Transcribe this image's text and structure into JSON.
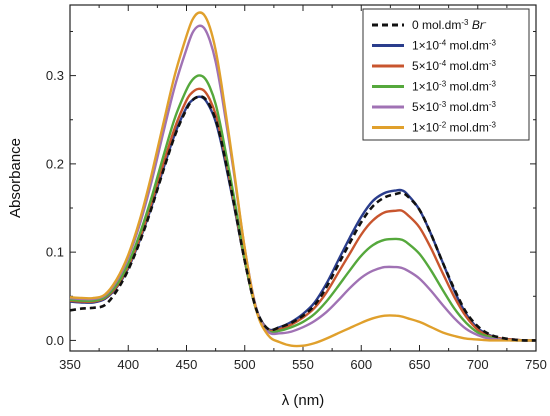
{
  "chart_data": {
    "type": "line",
    "xlabel": "λ (nm)",
    "ylabel": "Absorbance",
    "xlim": [
      350,
      750
    ],
    "ylim": [
      -0.012,
      0.38
    ],
    "xticks": [
      350,
      400,
      450,
      500,
      550,
      600,
      650,
      700,
      750
    ],
    "xtick_labels": [
      "350",
      "400",
      "450",
      "500",
      "550",
      "600",
      "650",
      "700",
      "750"
    ],
    "yticks": [
      0.0,
      0.1,
      0.2,
      0.3
    ],
    "ytick_labels": [
      "0.0",
      "0.1",
      "0.2",
      "0.3"
    ],
    "grid": false,
    "legend_position": "top-right",
    "x": [
      350,
      360,
      370,
      380,
      390,
      400,
      410,
      420,
      430,
      440,
      450,
      455,
      460,
      465,
      470,
      475,
      480,
      490,
      500,
      510,
      520,
      530,
      540,
      550,
      560,
      570,
      580,
      590,
      600,
      610,
      620,
      630,
      635,
      640,
      650,
      660,
      670,
      680,
      690,
      700,
      710,
      720,
      730,
      740,
      750
    ],
    "series": [
      {
        "name": "0 mol.dm-3 Br-",
        "legend_parts": [
          {
            "t": "0 mol.dm"
          },
          {
            "t": "-3",
            "sup": true
          },
          {
            "t": " "
          },
          {
            "t": "Br",
            "italic": true
          },
          {
            "t": "-",
            "sup": true
          }
        ],
        "color": "#111111",
        "dashed": true,
        "values": [
          0.034,
          0.036,
          0.037,
          0.04,
          0.056,
          0.08,
          0.112,
          0.15,
          0.192,
          0.232,
          0.262,
          0.272,
          0.276,
          0.275,
          0.266,
          0.25,
          0.225,
          0.16,
          0.09,
          0.035,
          0.013,
          0.015,
          0.02,
          0.028,
          0.04,
          0.06,
          0.085,
          0.11,
          0.134,
          0.152,
          0.162,
          0.166,
          0.167,
          0.163,
          0.148,
          0.12,
          0.088,
          0.058,
          0.032,
          0.016,
          0.007,
          0.003,
          0.001,
          0.0,
          0.0
        ]
      },
      {
        "name": "1×10-4 mol.dm-3",
        "legend_parts": [
          {
            "t": "1×10"
          },
          {
            "t": "-4",
            "sup": true
          },
          {
            "t": " mol.dm"
          },
          {
            "t": "-3",
            "sup": true
          }
        ],
        "color": "#2a3d8c",
        "dashed": false,
        "values": [
          0.044,
          0.043,
          0.043,
          0.047,
          0.06,
          0.082,
          0.114,
          0.152,
          0.194,
          0.234,
          0.264,
          0.272,
          0.276,
          0.274,
          0.264,
          0.248,
          0.222,
          0.158,
          0.09,
          0.035,
          0.013,
          0.015,
          0.021,
          0.03,
          0.043,
          0.064,
          0.09,
          0.116,
          0.14,
          0.158,
          0.167,
          0.17,
          0.17,
          0.165,
          0.148,
          0.12,
          0.088,
          0.056,
          0.03,
          0.014,
          0.006,
          0.002,
          0.001,
          0.0,
          0.0
        ]
      },
      {
        "name": "5×10-4 mol.dm-3",
        "legend_parts": [
          {
            "t": "5×10"
          },
          {
            "t": "-4",
            "sup": true
          },
          {
            "t": " mol.dm"
          },
          {
            "t": "-3",
            "sup": true
          }
        ],
        "color": "#c8552e",
        "dashed": false,
        "values": [
          0.045,
          0.044,
          0.044,
          0.048,
          0.061,
          0.084,
          0.116,
          0.156,
          0.199,
          0.241,
          0.272,
          0.281,
          0.285,
          0.283,
          0.273,
          0.256,
          0.229,
          0.162,
          0.09,
          0.034,
          0.012,
          0.013,
          0.018,
          0.026,
          0.037,
          0.054,
          0.076,
          0.098,
          0.12,
          0.136,
          0.145,
          0.147,
          0.147,
          0.142,
          0.128,
          0.104,
          0.076,
          0.049,
          0.027,
          0.012,
          0.005,
          0.002,
          0.001,
          0.0,
          0.0
        ]
      },
      {
        "name": "1×10-3 mol.dm-3",
        "legend_parts": [
          {
            "t": "1×10"
          },
          {
            "t": "-3",
            "sup": true
          },
          {
            "t": " mol.dm"
          },
          {
            "t": "-3",
            "sup": true
          }
        ],
        "color": "#55a83c",
        "dashed": false,
        "values": [
          0.046,
          0.045,
          0.045,
          0.049,
          0.063,
          0.087,
          0.121,
          0.162,
          0.208,
          0.252,
          0.284,
          0.295,
          0.3,
          0.298,
          0.287,
          0.268,
          0.238,
          0.168,
          0.092,
          0.034,
          0.011,
          0.011,
          0.015,
          0.021,
          0.03,
          0.044,
          0.061,
          0.079,
          0.096,
          0.108,
          0.114,
          0.115,
          0.114,
          0.11,
          0.098,
          0.079,
          0.057,
          0.036,
          0.02,
          0.009,
          0.004,
          0.001,
          0.0,
          0.0,
          0.0
        ]
      },
      {
        "name": "5×10-3 mol.dm-3",
        "legend_parts": [
          {
            "t": "5×10"
          },
          {
            "t": "-3",
            "sup": true
          },
          {
            "t": " mol.dm"
          },
          {
            "t": "-3",
            "sup": true
          }
        ],
        "color": "#a072b4",
        "dashed": false,
        "values": [
          0.048,
          0.047,
          0.047,
          0.051,
          0.067,
          0.094,
          0.132,
          0.18,
          0.235,
          0.288,
          0.33,
          0.348,
          0.356,
          0.354,
          0.34,
          0.316,
          0.28,
          0.196,
          0.104,
          0.036,
          0.01,
          0.008,
          0.01,
          0.015,
          0.022,
          0.032,
          0.045,
          0.059,
          0.071,
          0.079,
          0.083,
          0.083,
          0.082,
          0.079,
          0.07,
          0.056,
          0.04,
          0.025,
          0.013,
          0.006,
          0.002,
          0.001,
          0.0,
          0.0,
          0.0
        ]
      },
      {
        "name": "1×10-2 mol.dm-3",
        "legend_parts": [
          {
            "t": "1×10"
          },
          {
            "t": "-2",
            "sup": true
          },
          {
            "t": " mol.dm"
          },
          {
            "t": "-3",
            "sup": true
          }
        ],
        "color": "#e0a02c",
        "dashed": false,
        "values": [
          0.049,
          0.048,
          0.048,
          0.052,
          0.069,
          0.097,
          0.137,
          0.188,
          0.245,
          0.301,
          0.345,
          0.363,
          0.371,
          0.369,
          0.355,
          0.329,
          0.29,
          0.2,
          0.104,
          0.034,
          0.006,
          -0.002,
          -0.006,
          -0.006,
          -0.003,
          0.002,
          0.008,
          0.014,
          0.02,
          0.025,
          0.028,
          0.028,
          0.027,
          0.025,
          0.021,
          0.015,
          0.009,
          0.005,
          0.002,
          0.001,
          0.0,
          0.0,
          0.0,
          0.0,
          0.0
        ]
      }
    ]
  }
}
